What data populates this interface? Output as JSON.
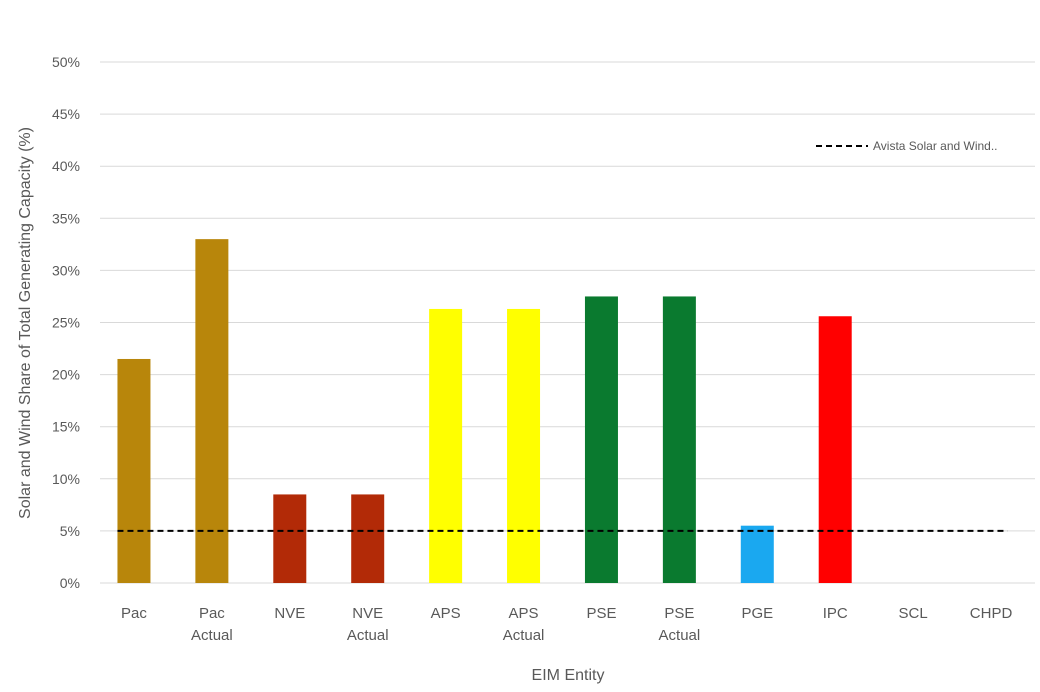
{
  "chart_data": {
    "type": "bar",
    "xlabel": "EIM Entity",
    "ylabel": "Solar and Wind Share of Total Generating Capacity (%)",
    "ylim": [
      0,
      50
    ],
    "yticks": [
      0,
      5,
      10,
      15,
      20,
      25,
      30,
      35,
      40,
      45,
      50
    ],
    "ytick_suffix": "%",
    "grid": true,
    "categories": [
      [
        "Pac"
      ],
      [
        "Pac",
        "Actual"
      ],
      [
        "NVE"
      ],
      [
        "NVE",
        "Actual"
      ],
      [
        "APS"
      ],
      [
        "APS",
        "Actual"
      ],
      [
        "PSE"
      ],
      [
        "PSE",
        "Actual"
      ],
      [
        "PGE"
      ],
      [
        "IPC"
      ],
      [
        "SCL"
      ],
      [
        "CHPD"
      ]
    ],
    "values": [
      21.5,
      33.0,
      8.5,
      8.5,
      26.3,
      26.3,
      27.5,
      27.5,
      5.5,
      25.6,
      0,
      0
    ],
    "colors": [
      "#b8860b",
      "#b8860b",
      "#b22a07",
      "#b22a07",
      "#ffff00",
      "#ffff00",
      "#0a7a2f",
      "#0a7a2f",
      "#1aa8f0",
      "#ff0000",
      "#ffffff",
      "#ffffff"
    ],
    "reference_line": {
      "name": "Avista Solar and Wind..",
      "value": 5.0,
      "style": "dashed",
      "color": "#000000"
    },
    "legend_position": "top-right"
  }
}
